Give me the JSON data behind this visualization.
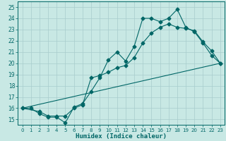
{
  "xlabel": "Humidex (Indice chaleur)",
  "bg_color": "#c8e8e4",
  "grid_color": "#a8cccc",
  "line_color": "#006666",
  "xlim": [
    -0.5,
    23.5
  ],
  "ylim": [
    14.5,
    25.5
  ],
  "xticks": [
    0,
    1,
    2,
    3,
    4,
    5,
    6,
    7,
    8,
    9,
    10,
    11,
    12,
    13,
    14,
    15,
    16,
    17,
    18,
    19,
    20,
    21,
    22,
    23
  ],
  "yticks": [
    15,
    16,
    17,
    18,
    19,
    20,
    21,
    22,
    23,
    24,
    25
  ],
  "line1_x": [
    0,
    1,
    2,
    3,
    4,
    5,
    6,
    7,
    8,
    9,
    10,
    11,
    12,
    13,
    14,
    15,
    16,
    17,
    18,
    19,
    20,
    21,
    22,
    23
  ],
  "line1_y": [
    16,
    16,
    15.5,
    15.2,
    15.2,
    14.7,
    16.1,
    16.4,
    17.5,
    18.7,
    20.3,
    21.0,
    20.2,
    21.5,
    24.0,
    24.0,
    23.7,
    24.0,
    24.8,
    23.2,
    22.8,
    21.8,
    20.7,
    20.0
  ],
  "line2_x": [
    0,
    2,
    3,
    4,
    5,
    6,
    7,
    8,
    9,
    10,
    11,
    12,
    13,
    14,
    15,
    16,
    17,
    18,
    19,
    20,
    21,
    22,
    23
  ],
  "line2_y": [
    16,
    15.7,
    15.3,
    15.3,
    15.3,
    16.0,
    16.3,
    18.7,
    18.9,
    19.2,
    19.6,
    19.8,
    20.5,
    21.8,
    22.7,
    23.2,
    23.5,
    23.2,
    23.1,
    22.9,
    21.9,
    21.1,
    20.0
  ],
  "line3_x": [
    0,
    23
  ],
  "line3_y": [
    16,
    20.0
  ]
}
